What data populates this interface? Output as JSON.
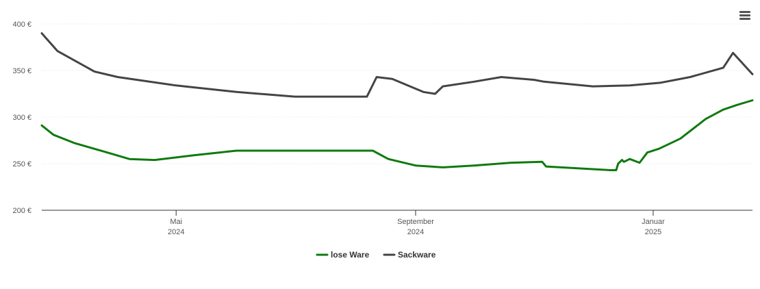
{
  "chart_data": {
    "type": "line",
    "currency_unit": "€",
    "ylim": [
      200,
      400
    ],
    "y_ticks": [
      200,
      250,
      300,
      350,
      400
    ],
    "y_tick_labels": [
      "200 €",
      "250 €",
      "300 €",
      "350 €",
      "400 €"
    ],
    "xlim": [
      "2024-02-22",
      "2025-02-21"
    ],
    "x_ticks": [
      {
        "date": "2024-05-01",
        "label_month": "Mai",
        "label_year": "2024"
      },
      {
        "date": "2024-09-01",
        "label_month": "September",
        "label_year": "2024"
      },
      {
        "date": "2025-01-01",
        "label_month": "Januar",
        "label_year": "2025"
      }
    ],
    "grid": true,
    "legend_position": "bottom-center",
    "series": [
      {
        "name": "lose Ware",
        "color": "#0e7a0d",
        "points": [
          [
            "2024-02-22",
            291
          ],
          [
            "2024-02-28",
            281
          ],
          [
            "2024-03-10",
            272
          ],
          [
            "2024-03-25",
            263
          ],
          [
            "2024-04-07",
            255
          ],
          [
            "2024-04-20",
            254
          ],
          [
            "2024-05-10",
            259
          ],
          [
            "2024-06-01",
            264
          ],
          [
            "2024-07-01",
            264
          ],
          [
            "2024-08-01",
            264
          ],
          [
            "2024-08-10",
            264
          ],
          [
            "2024-08-18",
            255
          ],
          [
            "2024-09-01",
            248
          ],
          [
            "2024-09-15",
            246
          ],
          [
            "2024-10-01",
            248
          ],
          [
            "2024-10-20",
            251
          ],
          [
            "2024-11-05",
            252
          ],
          [
            "2024-11-07",
            247
          ],
          [
            "2024-12-10",
            243
          ],
          [
            "2024-12-13",
            243
          ],
          [
            "2024-12-14",
            250
          ],
          [
            "2024-12-16",
            254
          ],
          [
            "2024-12-17",
            252
          ],
          [
            "2024-12-20",
            255
          ],
          [
            "2024-12-25",
            251
          ],
          [
            "2024-12-29",
            262
          ],
          [
            "2025-01-04",
            266
          ],
          [
            "2025-01-15",
            277
          ],
          [
            "2025-01-28",
            298
          ],
          [
            "2025-02-06",
            308
          ],
          [
            "2025-02-13",
            313
          ],
          [
            "2025-02-21",
            318
          ]
        ]
      },
      {
        "name": "Sackware",
        "color": "#434348",
        "points": [
          [
            "2024-02-22",
            390
          ],
          [
            "2024-03-01",
            371
          ],
          [
            "2024-03-20",
            349
          ],
          [
            "2024-04-01",
            343
          ],
          [
            "2024-05-01",
            334
          ],
          [
            "2024-06-01",
            327
          ],
          [
            "2024-07-01",
            322
          ],
          [
            "2024-08-07",
            322
          ],
          [
            "2024-08-12",
            343
          ],
          [
            "2024-08-20",
            341
          ],
          [
            "2024-09-05",
            327
          ],
          [
            "2024-09-11",
            325
          ],
          [
            "2024-09-15",
            333
          ],
          [
            "2024-10-01",
            338
          ],
          [
            "2024-10-15",
            343
          ],
          [
            "2024-11-01",
            340
          ],
          [
            "2024-11-06",
            338
          ],
          [
            "2024-12-01",
            333
          ],
          [
            "2024-12-20",
            334
          ],
          [
            "2025-01-05",
            337
          ],
          [
            "2025-01-20",
            343
          ],
          [
            "2025-02-06",
            353
          ],
          [
            "2025-02-11",
            369
          ],
          [
            "2025-02-21",
            346
          ]
        ]
      }
    ]
  }
}
